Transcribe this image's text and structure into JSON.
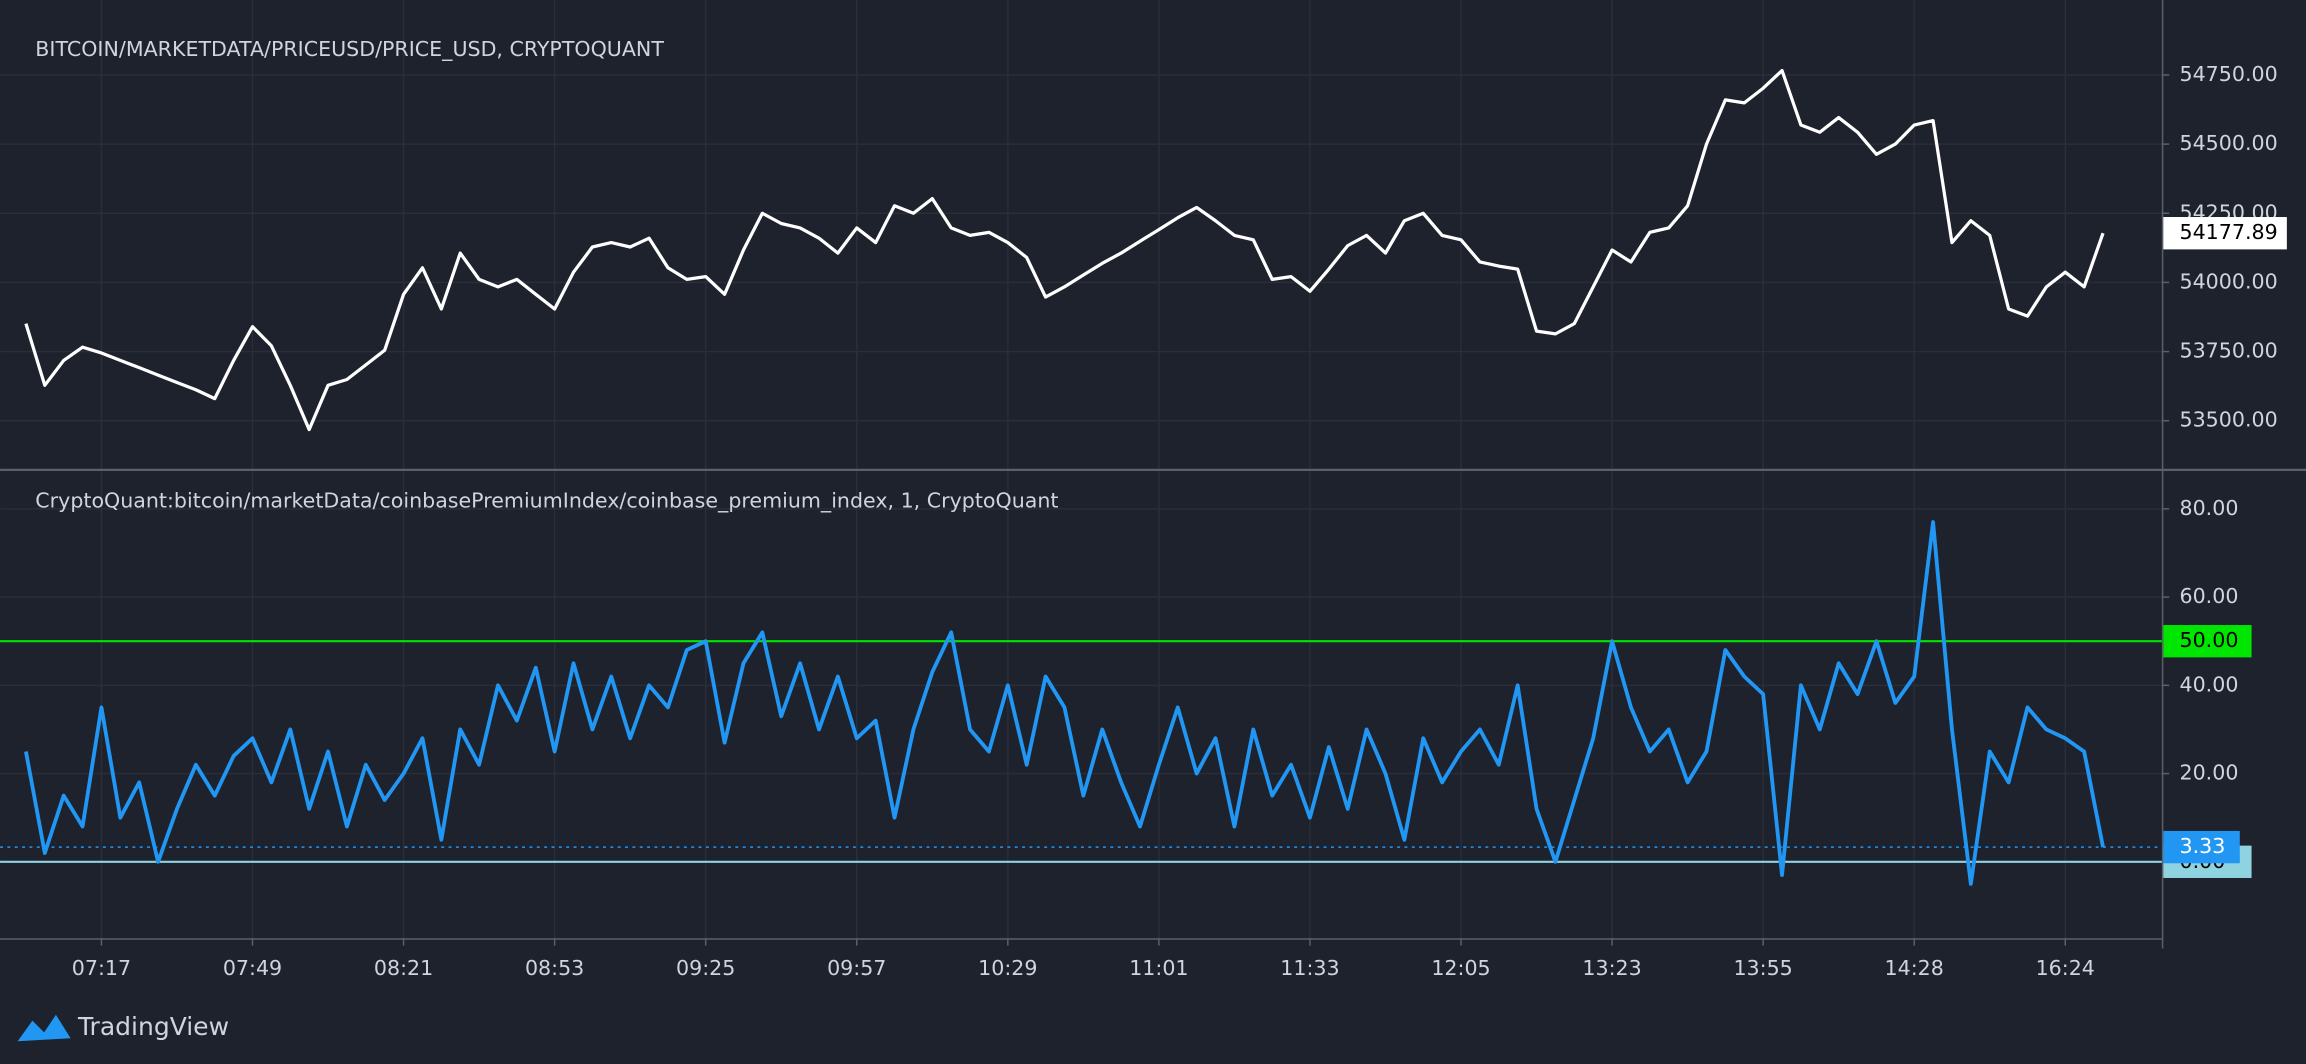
{
  "brand": "TradingView",
  "chart_data": [
    {
      "type": "line",
      "title": "BITCOIN/MARKETDATA/PRICEUSD/PRICE_USD, CRYPTOQUANT",
      "color": "#ffffff",
      "grid": true,
      "ylim": [
        53325,
        55021
      ],
      "yticks": [
        {
          "value": 53500,
          "label": "53500.00"
        },
        {
          "value": 53750,
          "label": "53750.00"
        },
        {
          "value": 54000,
          "label": "54000.00"
        },
        {
          "value": 54250,
          "label": "54250.00"
        },
        {
          "value": 54500,
          "label": "54500.00"
        },
        {
          "value": 54750,
          "label": "54750.00"
        }
      ],
      "values": [
        53851,
        53628,
        53718,
        53766,
        53745,
        53718,
        53692,
        53665,
        53638,
        53612,
        53580,
        53718,
        53840,
        53771,
        53628,
        53468,
        53628,
        53649,
        53702,
        53755,
        53957,
        54053,
        53904,
        54106,
        54011,
        53984,
        54011,
        53957,
        53904,
        54037,
        54128,
        54144,
        54128,
        54160,
        54053,
        54011,
        54021,
        53957,
        54117,
        54250,
        54213,
        54197,
        54160,
        54106,
        54197,
        54144,
        54277,
        54250,
        54303,
        54197,
        54170,
        54181,
        54144,
        54090,
        53947,
        53984,
        54027,
        54069,
        54106,
        54149,
        54191,
        54234,
        54271,
        54223,
        54170,
        54154,
        54011,
        54021,
        53968,
        54048,
        54133,
        54170,
        54106,
        54223,
        54250,
        54170,
        54154,
        54074,
        54059,
        54048,
        53824,
        53814,
        53851,
        53984,
        54117,
        54074,
        54181,
        54197,
        54277,
        54500,
        54660,
        54649,
        54702,
        54766,
        54569,
        54543,
        54596,
        54543,
        54463,
        54500,
        54569,
        54585,
        54144,
        54223,
        54170,
        53904,
        53878,
        53984,
        54037,
        53984,
        54177.89
      ]
    },
    {
      "type": "line",
      "title": "CryptoQuant:bitcoin/marketData/coinbasePremiumIndex/coinbase_premium_index, 1, CryptoQuant",
      "color": "#2196f3",
      "grid": true,
      "ylim": [
        -17.33,
        88.67
      ],
      "yticks": [
        {
          "value": 20,
          "label": "20.00"
        },
        {
          "value": 40,
          "label": "40.00"
        },
        {
          "value": 60,
          "label": "60.00"
        },
        {
          "value": 80,
          "label": "80.00"
        }
      ],
      "hlines": [
        {
          "value": 50,
          "label": "50.00",
          "color": "#00e600"
        },
        {
          "value": 0,
          "label": "0.00",
          "color": "#8fd3e0"
        }
      ],
      "categories": [
        null,
        null,
        null,
        null,
        "07:17",
        null,
        null,
        null,
        null,
        null,
        null,
        null,
        "07:49",
        null,
        null,
        null,
        null,
        null,
        null,
        null,
        "08:21",
        null,
        null,
        null,
        null,
        null,
        null,
        null,
        "08:53",
        null,
        null,
        null,
        null,
        null,
        null,
        null,
        "09:25",
        null,
        null,
        null,
        null,
        null,
        null,
        null,
        "09:57",
        null,
        null,
        null,
        null,
        null,
        null,
        null,
        "10:29",
        null,
        null,
        null,
        null,
        null,
        null,
        null,
        "11:01",
        null,
        null,
        null,
        null,
        null,
        null,
        null,
        "11:33",
        null,
        null,
        null,
        null,
        null,
        null,
        null,
        "12:05",
        null,
        null,
        null,
        null,
        null,
        null,
        null,
        "13:23",
        null,
        null,
        null,
        null,
        null,
        null,
        null,
        "13:55",
        null,
        null,
        null,
        null,
        null,
        null,
        null,
        "14:28",
        null,
        null,
        null,
        null,
        null,
        null,
        null,
        "16:24",
        null,
        null
      ],
      "values": [
        25,
        2,
        15,
        8,
        35,
        10,
        18,
        0,
        12,
        22,
        15,
        24,
        28,
        18,
        30,
        12,
        25,
        8,
        22,
        14,
        20,
        28,
        5,
        30,
        22,
        40,
        32,
        44,
        25,
        45,
        30,
        42,
        28,
        40,
        35,
        48,
        50,
        27,
        45,
        52,
        33,
        45,
        30,
        42,
        28,
        32,
        10,
        30,
        43,
        52,
        30,
        25,
        40,
        22,
        42,
        35,
        15,
        30,
        18,
        8,
        22,
        35,
        20,
        28,
        8,
        30,
        15,
        22,
        10,
        26,
        12,
        30,
        20,
        5,
        28,
        18,
        25,
        30,
        22,
        40,
        12,
        0,
        14,
        28,
        50,
        35,
        25,
        30,
        18,
        25,
        48,
        42,
        38,
        -3,
        40,
        30,
        45,
        38,
        50,
        36,
        42,
        77,
        30,
        -5,
        25,
        18,
        35,
        30,
        28,
        25,
        3.33
      ]
    }
  ]
}
